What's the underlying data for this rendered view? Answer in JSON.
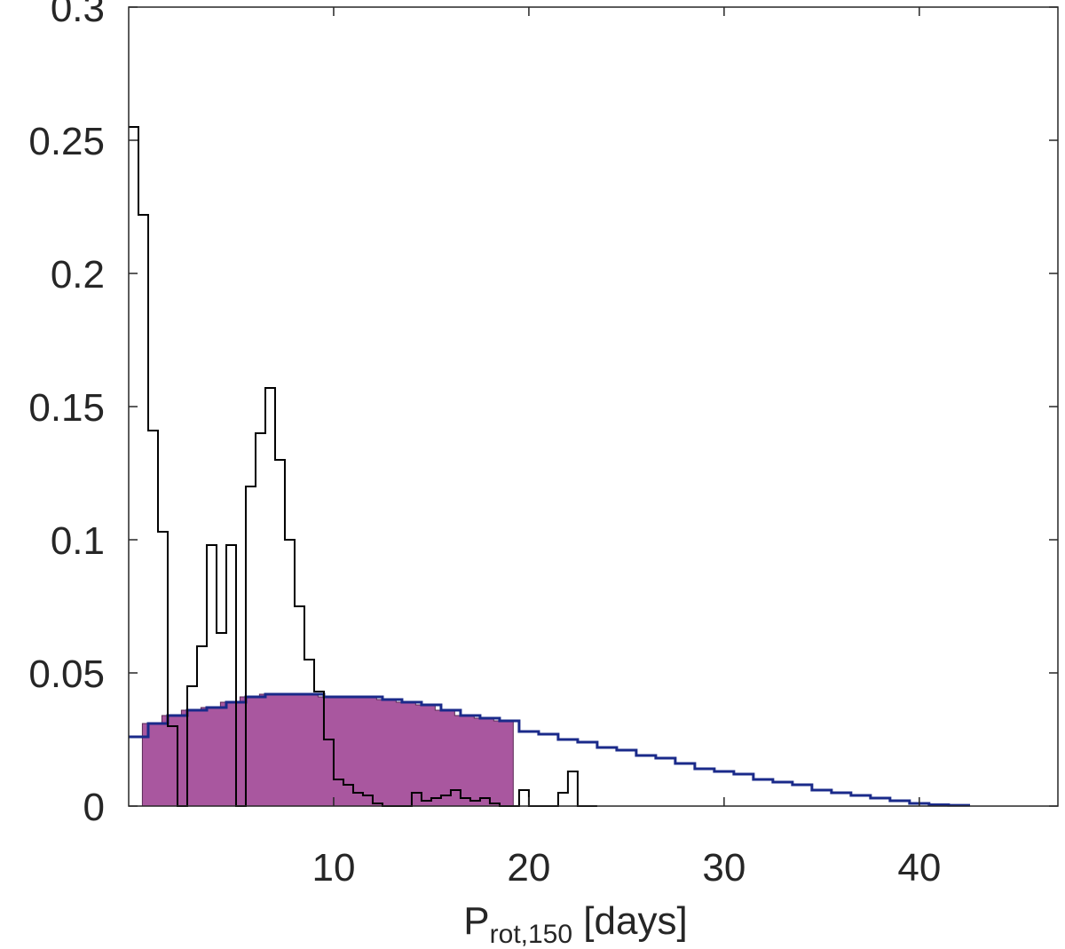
{
  "chart_data": {
    "type": "histogram",
    "title": "",
    "xlabel": {
      "main": "P",
      "subscript": "rot,150",
      "suffix": " [days]"
    },
    "ylabel": "",
    "xlim": [
      -0.5,
      47.1
    ],
    "ylim": [
      0,
      0.3
    ],
    "xticks": [
      10,
      20,
      30,
      40
    ],
    "xtick_labels": [
      "10",
      "20",
      "30",
      "40"
    ],
    "yticks": [
      0,
      0.05,
      0.1,
      0.15,
      0.2,
      0.25,
      0.3
    ],
    "ytick_labels": [
      "0",
      "0.05",
      "0.1",
      "0.15",
      "0.2",
      "0.25",
      "0.3"
    ],
    "grid": false,
    "colors": {
      "filled": "#a9579f",
      "blue": "#1a2a8a",
      "black": "#000000"
    },
    "series": [
      {
        "style": "filled-step",
        "color": "#a9579f",
        "edges": [
          0.2,
          1.2,
          2.2,
          3.2,
          4.2,
          5.2,
          6.2,
          7.2,
          8.2,
          9.2,
          10.2,
          11.2,
          12.2,
          13.2,
          14.2,
          15.2,
          16.2,
          17.2,
          18.2,
          19.2
        ],
        "values": [
          0.031,
          0.034,
          0.036,
          0.037,
          0.039,
          0.041,
          0.042,
          0.042,
          0.042,
          0.041,
          0.041,
          0.041,
          0.04,
          0.039,
          0.038,
          0.036,
          0.034,
          0.033,
          0.032
        ]
      },
      {
        "style": "step",
        "color": "#1a2a8a",
        "edges": [
          -0.5,
          0.5,
          1.5,
          2.5,
          3.5,
          4.5,
          5.5,
          6.5,
          7.5,
          8.5,
          9.5,
          10.5,
          11.5,
          12.5,
          13.5,
          14.5,
          15.5,
          16.5,
          17.5,
          18.5,
          19.5,
          20.5,
          21.5,
          22.5,
          23.5,
          24.5,
          25.5,
          26.5,
          27.5,
          28.5,
          29.5,
          30.5,
          31.5,
          32.5,
          33.5,
          34.5,
          35.5,
          36.5,
          37.5,
          38.5,
          39.5,
          40.5,
          41.5,
          42.6
        ],
        "values": [
          0.026,
          0.031,
          0.034,
          0.036,
          0.037,
          0.039,
          0.041,
          0.042,
          0.042,
          0.042,
          0.041,
          0.041,
          0.041,
          0.04,
          0.039,
          0.038,
          0.036,
          0.034,
          0.033,
          0.032,
          0.028,
          0.027,
          0.025,
          0.024,
          0.022,
          0.021,
          0.019,
          0.018,
          0.016,
          0.014,
          0.013,
          0.012,
          0.01,
          0.009,
          0.008,
          0.006,
          0.005,
          0.004,
          0.003,
          0.002,
          0.001,
          0.0005,
          0.0003
        ]
      },
      {
        "style": "step",
        "color": "#000000",
        "edges": [
          -0.5,
          0.0,
          0.5,
          1.0,
          1.5,
          2.0,
          2.5,
          3.0,
          3.5,
          4.0,
          4.5,
          5.0,
          5.5,
          6.0,
          6.5,
          7.0,
          7.5,
          8.0,
          8.5,
          9.0,
          9.5,
          10.0,
          10.5,
          11.0,
          11.5,
          12.0,
          12.5,
          13.0,
          13.5,
          14.0,
          14.5,
          15.0,
          15.5,
          16.0,
          16.5,
          17.0,
          17.5,
          18.0,
          18.5,
          19.0,
          19.5,
          20.0,
          20.5,
          21.0,
          21.5,
          22.0,
          22.5,
          23.0,
          23.5
        ],
        "values": [
          0.255,
          0.222,
          0.141,
          0.103,
          0.03,
          0.0,
          0.045,
          0.06,
          0.098,
          0.065,
          0.098,
          0.0,
          0.12,
          0.14,
          0.157,
          0.13,
          0.1,
          0.075,
          0.055,
          0.043,
          0.025,
          0.01,
          0.008,
          0.005,
          0.004,
          0.001,
          0.0,
          0.0,
          0.0,
          0.005,
          0.002,
          0.003,
          0.004,
          0.006,
          0.003,
          0.002,
          0.003,
          0.001,
          0.0,
          0.0,
          0.006,
          0.0,
          0.0,
          0.0,
          0.005,
          0.013,
          0.0,
          0.0
        ]
      }
    ]
  }
}
